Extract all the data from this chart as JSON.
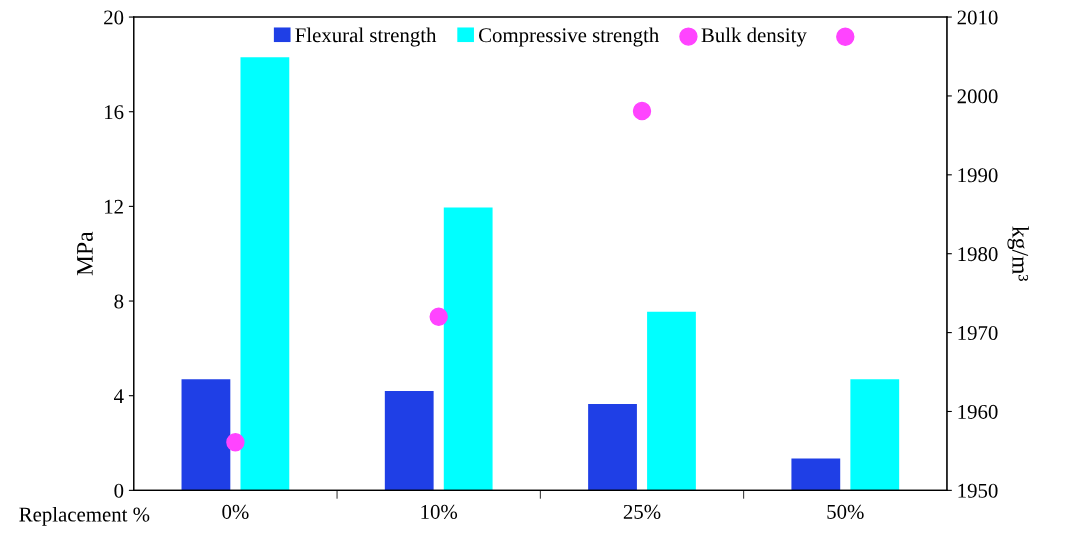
{
  "chart_data": {
    "type": "bar",
    "xlabel": "Replacement %",
    "ylabel": "MPa",
    "y2label": "kg/m³",
    "categories": [
      "0%",
      "10%",
      "25%",
      "50%"
    ],
    "series": [
      {
        "name": "Flexural strength",
        "color": "#1f3fe6",
        "values": [
          4.7,
          4.2,
          3.65,
          1.35
        ]
      },
      {
        "name": "Compressive strength",
        "color": "#00ffff",
        "values": [
          18.3,
          11.95,
          7.55,
          4.7
        ]
      },
      {
        "name": "Bulk density",
        "type": "scatter",
        "axis": "y2",
        "color": "#ff44ff",
        "values": [
          1956.1,
          1972,
          1998.1,
          2007.5
        ]
      }
    ],
    "ylim": [
      0,
      20
    ],
    "yticks": [
      0,
      4,
      8,
      12,
      16,
      20
    ],
    "y2lim": [
      1950,
      2010
    ],
    "y2ticks": [
      1950,
      1960,
      1970,
      1980,
      1990,
      2000,
      2010
    ],
    "legend": "top",
    "marker": "circle"
  }
}
